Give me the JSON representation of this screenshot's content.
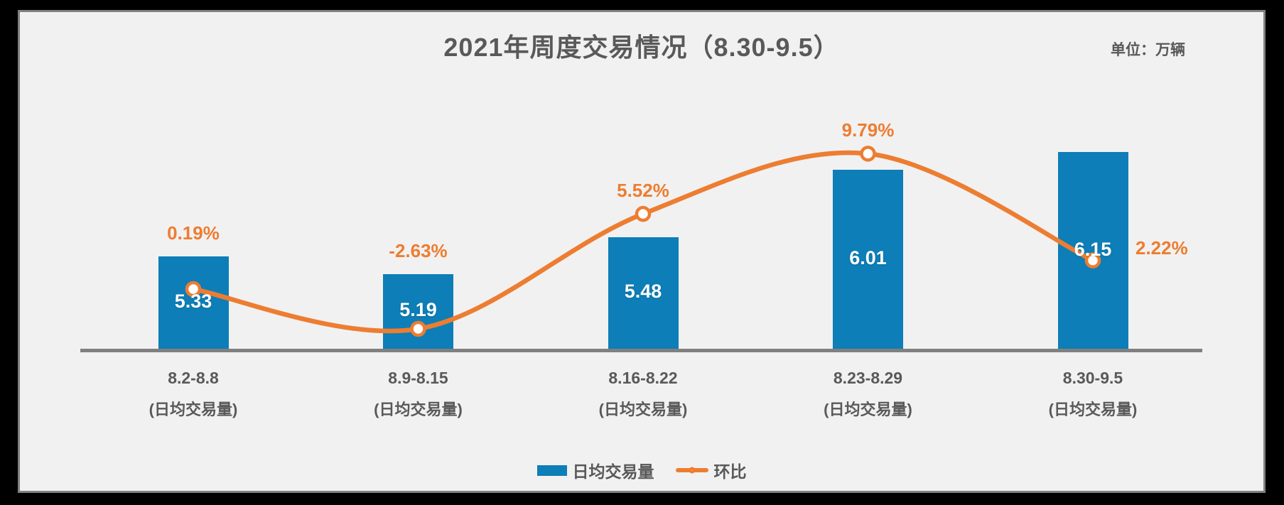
{
  "window": {
    "background": "#000000",
    "panel_background": "#F1F1F1",
    "panel_border_color": "#808080"
  },
  "header": {
    "title": "2021年周度交易情况（8.30-9.5）",
    "unit_label": "单位：万辆"
  },
  "colors": {
    "bar": "#0D7EB7",
    "line": "#ED7D31",
    "pct_text": "#ED7D31",
    "axis_line": "#808080",
    "label_text": "#595959",
    "bar_value_text": "#FFFFFF",
    "marker_fill": "#FFFFFF"
  },
  "legend": {
    "items": [
      {
        "label": "日均交易量",
        "type": "bar"
      },
      {
        "label": "环比",
        "type": "line"
      }
    ]
  },
  "chart_data": {
    "type": "combo-bar-line",
    "title": "2021年周度交易情况（8.30-9.5）",
    "unit": "万辆",
    "categories": [
      "8.2-8.8",
      "8.9-8.15",
      "8.16-8.22",
      "8.23-8.29",
      "8.30-9.5"
    ],
    "category_sublabels": [
      "(日均交易量)",
      "(日均交易量)",
      "(日均交易量)",
      "(日均交易量)",
      "(日均交易量)"
    ],
    "series": [
      {
        "name": "日均交易量",
        "type": "bar",
        "values": [
          5.33,
          5.19,
          5.48,
          6.01,
          6.15
        ],
        "labels": [
          "5.33",
          "5.19",
          "5.48",
          "6.01",
          "6.15"
        ],
        "color": "#0D7EB7",
        "axis_min": 4.6
      },
      {
        "name": "环比",
        "type": "line",
        "unit": "%",
        "values": [
          0.19,
          -2.63,
          5.52,
          9.79,
          2.22
        ],
        "labels": [
          "0.19%",
          "-2.63%",
          "5.52%",
          "9.79%",
          "2.22%"
        ],
        "color": "#ED7D31",
        "marker": "circle-white-fill",
        "smooth": true
      }
    ],
    "grid": false,
    "y_axis_visible": false,
    "legend_position": "bottom"
  }
}
